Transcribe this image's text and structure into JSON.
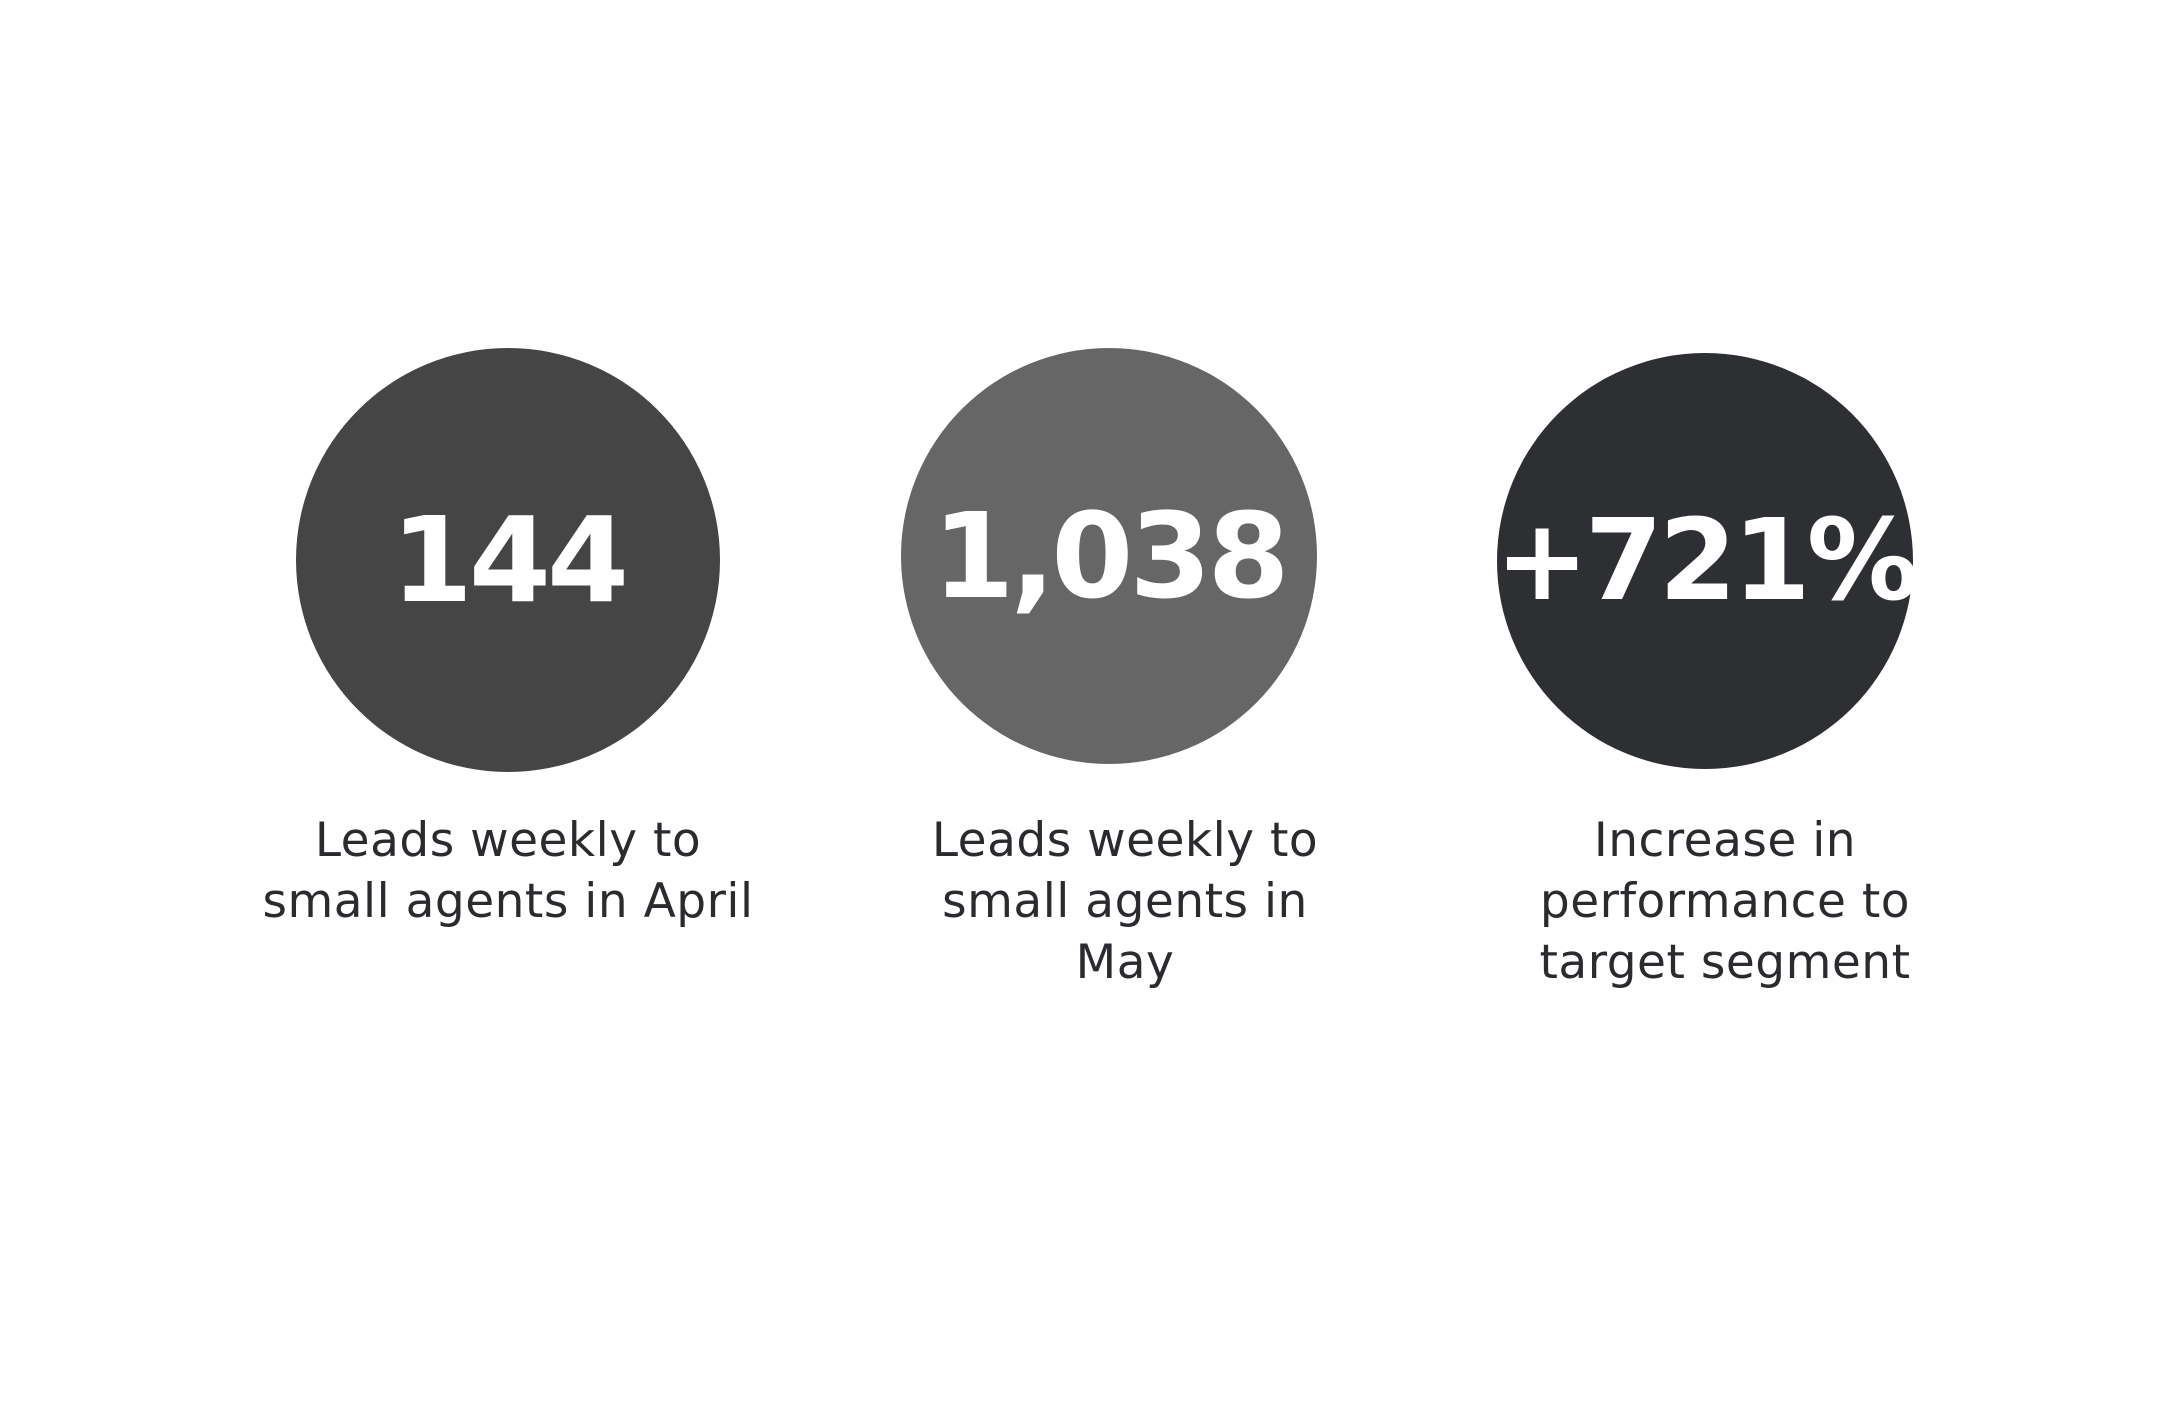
{
  "stats": [
    {
      "value": "144",
      "label_lines": [
        "Leads weekly to",
        "small agents in April"
      ],
      "color": "#454545"
    },
    {
      "value": "1,038",
      "label_lines": [
        "Leads weekly to",
        "small agents in",
        "May"
      ],
      "color": "#666666"
    },
    {
      "value": "+721%",
      "label_lines": [
        "Increase in",
        "performance to",
        "target segment"
      ],
      "color": "#2d2f33"
    }
  ]
}
